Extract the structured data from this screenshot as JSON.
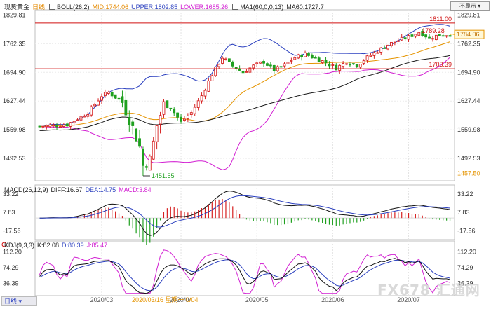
{
  "header": {
    "instrument": "现货黄金",
    "period_tag": "日线",
    "boll_name": "BOLL(26,2)",
    "boll_mid": "MID:1744.06",
    "boll_upper": "UPPER:1802.85",
    "boll_lower": "LOWER:1685.26",
    "ma_name": "MA1(60,0,0,13)",
    "ma60": "MA60:1727.7",
    "toggle_label": "不显示"
  },
  "macd_header": {
    "name": "MACD(26,12,9)",
    "diff": "DIFF:16.67",
    "dea": "DEA:14.75",
    "macd": "MACD:3.84"
  },
  "kdj_header": {
    "name": "KDJ(9,3,3)",
    "k": "K:82.08",
    "d": "D:80.39",
    "j": "J:85.47"
  },
  "footer": {
    "period_button": "日线",
    "cursor_date": "2020/03/16 星期一 0/04",
    "logo_text": "FX678 汇通网"
  },
  "colors": {
    "up": "#d62020",
    "down": "#1fa01f",
    "mid": "#e59400",
    "upper": "#2a3fbf",
    "lower": "#d21fd2",
    "ma60": "#1a1a1a",
    "level": "#d01010"
  },
  "chart_data": {
    "type": "candlestick",
    "price_axis_ticks": [
      "1829.81",
      "1762.35",
      "1694.90",
      "1627.44",
      "1559.98",
      "1492.53"
    ],
    "price_ylim": [
      1440,
      1842
    ],
    "x_ticks": [
      "2020/03",
      "2020/04",
      "2020/05",
      "2020/06",
      "2020/07"
    ],
    "levels": [
      {
        "label": "1811.00",
        "value": 1811.0
      },
      {
        "label": "1703.39",
        "value": 1703.39
      }
    ],
    "annotations": [
      {
        "label": "1789.28",
        "value": 1789.28
      },
      {
        "label": "1451.55",
        "value": 1451.55
      },
      {
        "label": "1784.06",
        "value": 1784.06,
        "kind": "last-price-tag"
      },
      {
        "label": "1457.50",
        "value": 1457.5,
        "kind": "side-tag"
      }
    ],
    "macd_axis_ticks": [
      "33.22",
      "7.83",
      "-17.56"
    ],
    "kdj_axis_ticks": [
      "112.20",
      "74.29",
      "36.39"
    ]
  }
}
